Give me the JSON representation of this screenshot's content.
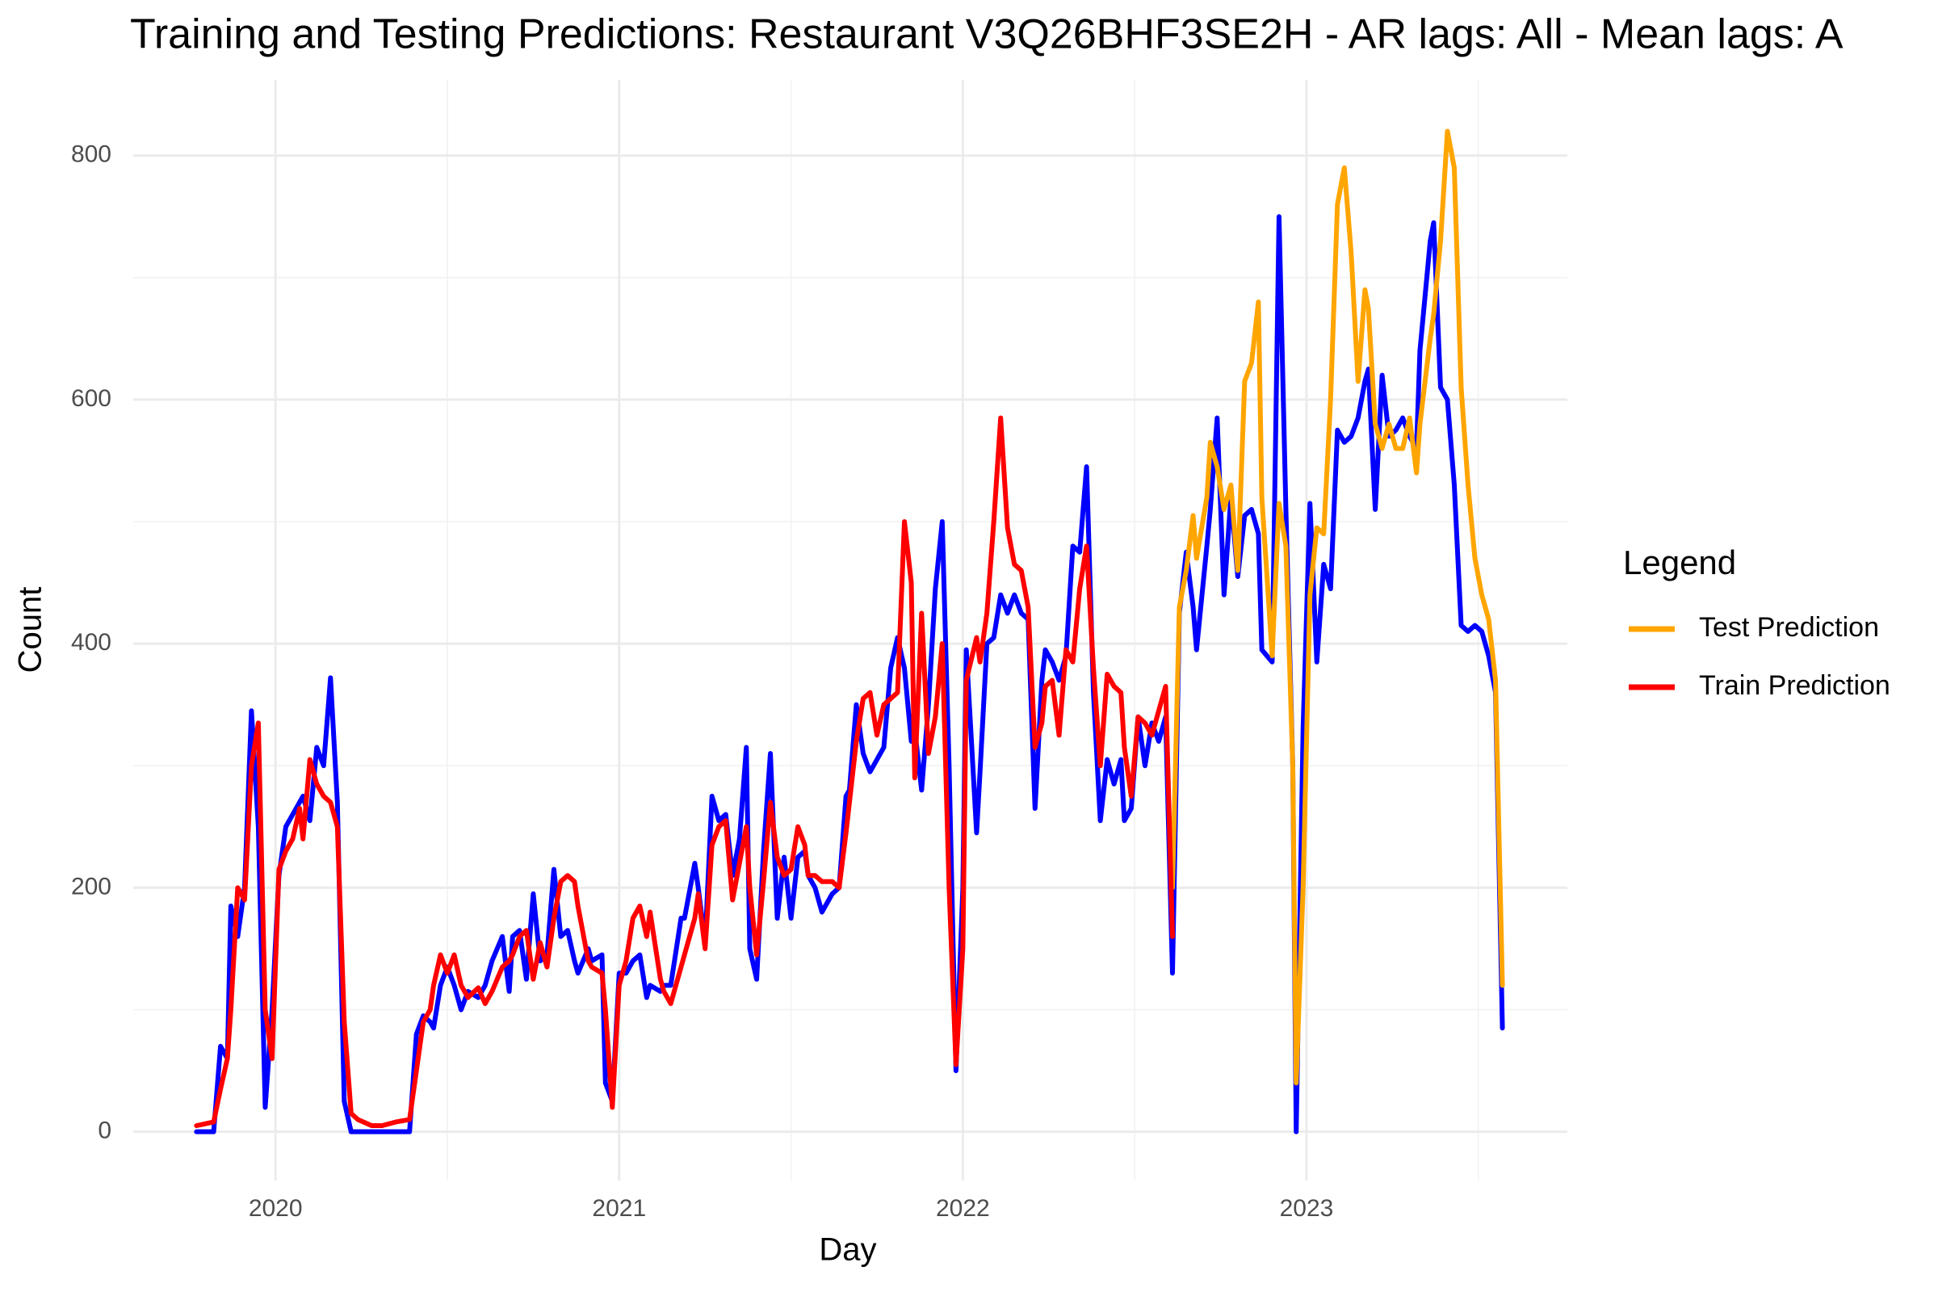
{
  "chart_data": {
    "type": "line",
    "title": "Training and Testing Predictions: Restaurant V3Q26BHF3SE2H - AR lags: All - Mean lags: A",
    "x_label": "Day",
    "y_label": "Count",
    "legend_title": "Legend",
    "legend_position": "right",
    "grid": true,
    "xlim": [
      2019.586,
      2023.759
    ],
    "ylim": [
      -40,
      862
    ],
    "xticks": [
      2020,
      2021,
      2022,
      2023
    ],
    "yticks": [
      0,
      200,
      400,
      600,
      800
    ],
    "x_minor_ticks": [
      2020.5,
      2021.5,
      2022.5,
      2023.5
    ],
    "y_minor_ticks": [
      100,
      300,
      500,
      700
    ],
    "x": [
      2019.77,
      2019.82,
      2019.84,
      2019.86,
      2019.87,
      2019.89,
      2019.91,
      2019.93,
      2019.95,
      2019.97,
      2019.99,
      2020.01,
      2020.03,
      2020.05,
      2020.07,
      2020.08,
      2020.1,
      2020.12,
      2020.14,
      2020.16,
      2020.18,
      2020.2,
      2020.22,
      2020.24,
      2020.28,
      2020.31,
      2020.35,
      2020.39,
      2020.41,
      2020.43,
      2020.45,
      2020.46,
      2020.48,
      2020.5,
      2020.52,
      2020.54,
      2020.56,
      2020.59,
      2020.61,
      2020.63,
      2020.66,
      2020.68,
      2020.69,
      2020.71,
      2020.73,
      2020.75,
      2020.77,
      2020.79,
      2020.81,
      2020.83,
      2020.85,
      2020.87,
      2020.88,
      2020.91,
      2020.92,
      2020.95,
      2020.96,
      2020.98,
      2021.0,
      2021.02,
      2021.04,
      2021.06,
      2021.08,
      2021.09,
      2021.12,
      2021.13,
      2021.15,
      2021.18,
      2021.19,
      2021.22,
      2021.23,
      2021.25,
      2021.27,
      2021.29,
      2021.31,
      2021.33,
      2021.35,
      2021.37,
      2021.38,
      2021.4,
      2021.42,
      2021.44,
      2021.46,
      2021.48,
      2021.5,
      2021.52,
      2021.54,
      2021.55,
      2021.57,
      2021.59,
      2021.62,
      2021.64,
      2021.66,
      2021.67,
      2021.69,
      2021.71,
      2021.73,
      2021.75,
      2021.77,
      2021.79,
      2021.81,
      2021.83,
      2021.85,
      2021.86,
      2021.88,
      2021.9,
      2021.92,
      2021.94,
      2021.96,
      2021.98,
      2022.0,
      2022.01,
      2022.04,
      2022.05,
      2022.07,
      2022.09,
      2022.11,
      2022.13,
      2022.15,
      2022.17,
      2022.19,
      2022.21,
      2022.23,
      2022.24,
      2022.26,
      2022.28,
      2022.3,
      2022.32,
      2022.34,
      2022.36,
      2022.38,
      2022.4,
      2022.42,
      2022.44,
      2022.46,
      2022.47,
      2022.49,
      2022.51,
      2022.53,
      2022.55,
      2022.57,
      2022.59,
      2022.61,
      2022.63,
      2022.65,
      2022.67,
      2022.68,
      2022.71,
      2022.72,
      2022.74,
      2022.76,
      2022.78,
      2022.8,
      2022.82,
      2022.84,
      2022.86,
      2022.87,
      2022.9,
      2022.92,
      2022.94,
      2022.96,
      2022.97,
      2022.99,
      2023.01,
      2023.03,
      2023.05,
      2023.07,
      2023.09,
      2023.11,
      2023.13,
      2023.15,
      2023.17,
      2023.18,
      2023.2,
      2023.22,
      2023.24,
      2023.26,
      2023.28,
      2023.3,
      2023.32,
      2023.33,
      2023.36,
      2023.37,
      2023.39,
      2023.41,
      2023.43,
      2023.45,
      2023.47,
      2023.49,
      2023.51,
      2023.53,
      2023.55,
      2023.57
    ],
    "series": [
      {
        "color": "#0000ff",
        "values": [
          0,
          0,
          70,
          60,
          185,
          160,
          200,
          345,
          250,
          20,
          100,
          210,
          250,
          260,
          270,
          275,
          255,
          315,
          300,
          372,
          270,
          25,
          0,
          0,
          0,
          0,
          0,
          0,
          80,
          95,
          90,
          85,
          120,
          135,
          120,
          100,
          115,
          110,
          120,
          140,
          160,
          115,
          160,
          165,
          125,
          195,
          140,
          145,
          215,
          160,
          165,
          140,
          130,
          150,
          140,
          145,
          40,
          25,
          130,
          130,
          140,
          145,
          110,
          120,
          115,
          120,
          120,
          175,
          175,
          220,
          200,
          155,
          275,
          255,
          260,
          210,
          240,
          315,
          150,
          125,
          230,
          310,
          175,
          225,
          175,
          225,
          230,
          210,
          200,
          180,
          195,
          200,
          275,
          280,
          350,
          310,
          295,
          305,
          315,
          380,
          405,
          380,
          320,
          330,
          280,
          350,
          445,
          500,
          300,
          50,
          200,
          395,
          245,
          295,
          400,
          405,
          440,
          425,
          440,
          425,
          420,
          265,
          370,
          395,
          385,
          370,
          390,
          480,
          475,
          545,
          360,
          255,
          305,
          285,
          305,
          255,
          265,
          340,
          300,
          335,
          320,
          340,
          130,
          425,
          475,
          430,
          395,
          480,
          510,
          585,
          440,
          520,
          455,
          505,
          510,
          490,
          395,
          385,
          750,
          510,
          300,
          0,
          330,
          515,
          385,
          465,
          445,
          575,
          565,
          570,
          585,
          615,
          625,
          510,
          620,
          570,
          575,
          585,
          570,
          560,
          640,
          730,
          745,
          610,
          600,
          530,
          415,
          410,
          415,
          410,
          390,
          360,
          85
        ]
      },
      {
        "name": "Test Prediction",
        "color": "#ffa500",
        "values": [
          null,
          null,
          null,
          null,
          null,
          null,
          null,
          null,
          null,
          null,
          null,
          null,
          null,
          null,
          null,
          null,
          null,
          null,
          null,
          null,
          null,
          null,
          null,
          null,
          null,
          null,
          null,
          null,
          null,
          null,
          null,
          null,
          null,
          null,
          null,
          null,
          null,
          null,
          null,
          null,
          null,
          null,
          null,
          null,
          null,
          null,
          null,
          null,
          null,
          null,
          null,
          null,
          null,
          null,
          null,
          null,
          null,
          null,
          null,
          null,
          null,
          null,
          null,
          null,
          null,
          null,
          null,
          null,
          null,
          null,
          null,
          null,
          null,
          null,
          null,
          null,
          null,
          null,
          null,
          null,
          null,
          null,
          null,
          null,
          null,
          null,
          null,
          null,
          null,
          null,
          null,
          null,
          null,
          null,
          null,
          null,
          null,
          null,
          null,
          null,
          null,
          null,
          null,
          null,
          null,
          null,
          null,
          null,
          null,
          null,
          null,
          null,
          null,
          null,
          null,
          null,
          null,
          null,
          null,
          null,
          null,
          null,
          null,
          null,
          null,
          null,
          null,
          null,
          null,
          null,
          null,
          null,
          null,
          null,
          null,
          null,
          null,
          null,
          null,
          null,
          null,
          null,
          200,
          430,
          460,
          505,
          470,
          520,
          565,
          545,
          510,
          530,
          460,
          615,
          630,
          680,
          520,
          390,
          515,
          480,
          300,
          40,
          200,
          440,
          495,
          490,
          600,
          760,
          790,
          720,
          615,
          690,
          675,
          580,
          560,
          580,
          560,
          560,
          585,
          540,
          580,
          650,
          670,
          730,
          820,
          790,
          610,
          530,
          470,
          440,
          420,
          370,
          120
        ]
      },
      {
        "name": "Train Prediction",
        "color": "#ff0000",
        "values": [
          5,
          8,
          35,
          60,
          100,
          200,
          190,
          300,
          335,
          100,
          60,
          215,
          230,
          240,
          265,
          240,
          305,
          285,
          275,
          270,
          250,
          90,
          15,
          10,
          5,
          5,
          8,
          10,
          50,
          90,
          100,
          120,
          145,
          130,
          145,
          120,
          110,
          118,
          105,
          115,
          135,
          140,
          145,
          160,
          165,
          125,
          155,
          135,
          175,
          205,
          210,
          205,
          185,
          140,
          135,
          130,
          100,
          20,
          120,
          140,
          175,
          185,
          160,
          180,
          125,
          115,
          105,
          135,
          145,
          175,
          195,
          150,
          235,
          250,
          255,
          190,
          220,
          250,
          200,
          145,
          205,
          270,
          225,
          210,
          215,
          250,
          235,
          210,
          210,
          205,
          205,
          200,
          245,
          270,
          320,
          355,
          360,
          325,
          350,
          355,
          360,
          500,
          450,
          290,
          425,
          310,
          340,
          400,
          200,
          55,
          150,
          370,
          405,
          385,
          425,
          500,
          585,
          495,
          465,
          460,
          430,
          315,
          335,
          365,
          370,
          325,
          395,
          385,
          445,
          480,
          380,
          300,
          375,
          365,
          360,
          315,
          275,
          340,
          335,
          325,
          345,
          365,
          160,
          null,
          null,
          null,
          null,
          null,
          null,
          null,
          null,
          null,
          null,
          null,
          null,
          null,
          null,
          null,
          null,
          null,
          null,
          null,
          null,
          null,
          null,
          null,
          null,
          null,
          null,
          null,
          null,
          null,
          null,
          null,
          null,
          null,
          null,
          null,
          null,
          null,
          null,
          null,
          null,
          null,
          null,
          null,
          null,
          null,
          null,
          null,
          null,
          null,
          null
        ]
      }
    ]
  }
}
